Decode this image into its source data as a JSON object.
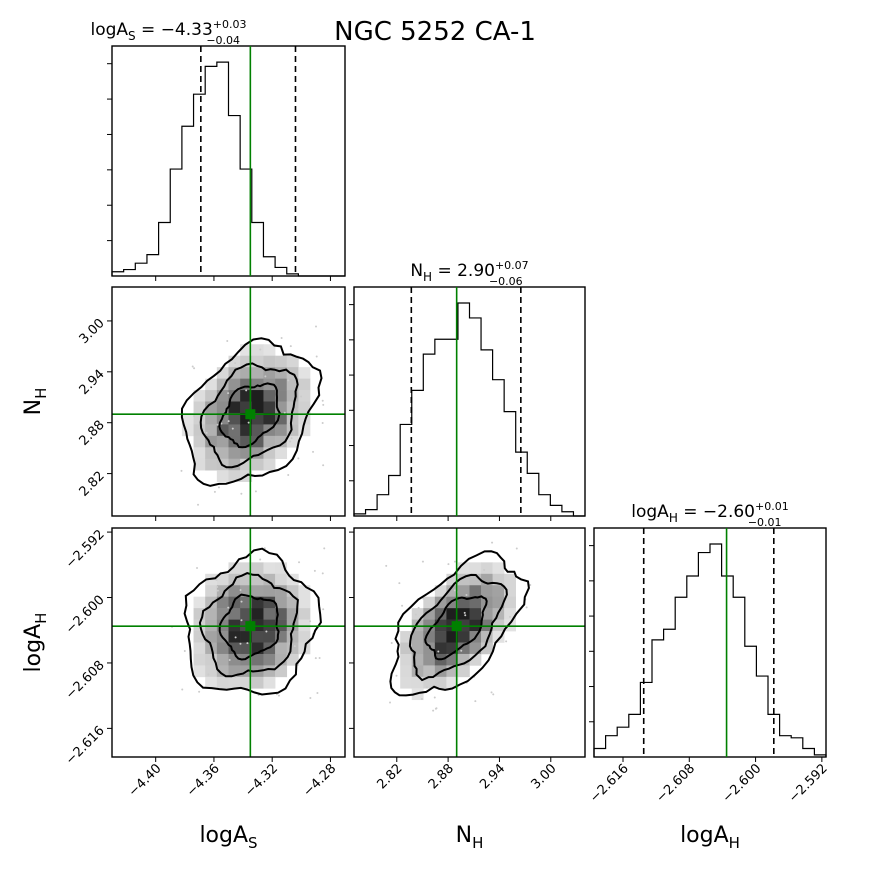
{
  "figure_title": "NGC 5252 CA-1",
  "chart_data": {
    "type": "corner",
    "parameters": [
      {
        "key": "logAS",
        "label_main": "logA",
        "label_sub": "S",
        "range": [
          -4.43,
          -4.27
        ],
        "ticks": [
          -4.4,
          -4.36,
          -4.32,
          -4.28
        ],
        "tick_labels": [
          "−4.40",
          "−4.36",
          "−4.32",
          "−4.28"
        ]
      },
      {
        "key": "NH",
        "label_main": "N",
        "label_sub": "H",
        "range": [
          2.77,
          3.04
        ],
        "ticks": [
          2.82,
          2.88,
          2.94,
          3.0
        ],
        "tick_labels": [
          "2.82",
          "2.88",
          "2.94",
          "3.00"
        ]
      },
      {
        "key": "logAH",
        "label_main": "logA",
        "label_sub": "H",
        "range": [
          -2.6195,
          -2.5915
        ],
        "ticks": [
          -2.616,
          -2.608,
          -2.6,
          -2.592
        ],
        "tick_labels": [
          "−2.616",
          "−2.608",
          "−2.600",
          "−2.592"
        ]
      }
    ],
    "truths": {
      "logAS": -4.335,
      "NH": 2.89,
      "logAH": -2.6035
    },
    "quantiles": {
      "logAS": [
        -4.369,
        -4.304
      ],
      "NH": [
        2.837,
        2.965
      ],
      "logAH": [
        -2.6135,
        -2.5978
      ]
    },
    "titles": [
      {
        "main": "logA",
        "sub": "S",
        "value": " = −4.33",
        "plus": "+0.03",
        "minus": "−0.04"
      },
      {
        "main": "N",
        "sub": "H",
        "value": " = 2.90",
        "plus": "+0.07",
        "minus": "−0.06"
      },
      {
        "main": "logA",
        "sub": "H",
        "value": " = −2.60",
        "plus": "+0.01",
        "minus": "−0.01"
      }
    ],
    "histograms": {
      "logAS": {
        "bin_count": 20,
        "counts": [
          0.02,
          0.03,
          0.06,
          0.1,
          0.25,
          0.5,
          0.7,
          0.85,
          0.98,
          1.0,
          0.75,
          0.5,
          0.25,
          0.09,
          0.04,
          0.01,
          0,
          0,
          0,
          0
        ]
      },
      "NH": {
        "bin_count": 20,
        "counts": [
          0.01,
          0.03,
          0.1,
          0.19,
          0.43,
          0.59,
          0.76,
          0.83,
          0.83,
          1.0,
          0.93,
          0.78,
          0.64,
          0.49,
          0.3,
          0.2,
          0.1,
          0.05,
          0.02,
          0.0
        ]
      },
      "logAH": {
        "bin_count": 20,
        "counts": [
          0.04,
          0.1,
          0.14,
          0.2,
          0.35,
          0.55,
          0.6,
          0.75,
          0.85,
          0.96,
          1.0,
          0.85,
          0.75,
          0.52,
          0.38,
          0.2,
          0.1,
          0.09,
          0.04,
          0.01
        ]
      }
    },
    "correlations": {
      "NH_vs_logAS": 0.3,
      "logAH_vs_logAS": 0.1,
      "logAH_vs_NH": 0.55
    },
    "density_shading": "grayscale",
    "contour_color": "#000000",
    "truth_color": "#008000"
  }
}
